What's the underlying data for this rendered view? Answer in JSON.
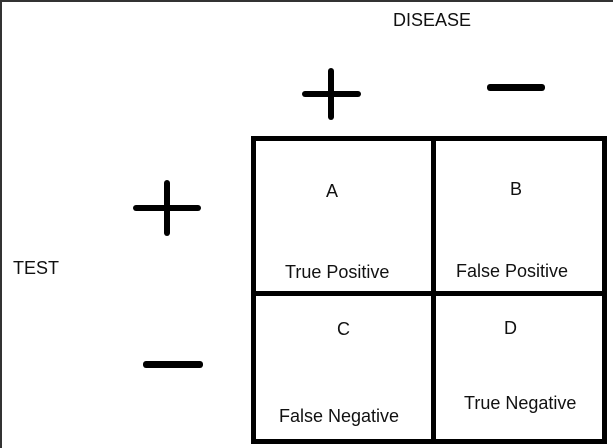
{
  "diagram": {
    "disease_label": "DISEASE",
    "test_label": "TEST",
    "disease_positive_sign": "plus-sign",
    "disease_negative_sign": "minus-sign",
    "test_positive_sign": "plus-sign",
    "test_negative_sign": "minus-sign",
    "cells": [
      {
        "letter": "A",
        "text": "True Positive"
      },
      {
        "letter": "B",
        "text": "False Positive"
      },
      {
        "letter": "C",
        "text": "False Negative"
      },
      {
        "letter": "D",
        "text": "True Negative"
      }
    ]
  }
}
